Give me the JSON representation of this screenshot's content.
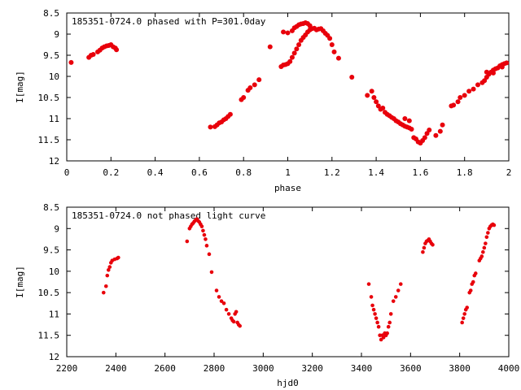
{
  "chart_data": [
    {
      "type": "scatter",
      "title": "185351-0724.0 phased with P=301.0day",
      "xlabel": "phase",
      "ylabel": "I[mag]",
      "xlim": [
        0,
        2
      ],
      "ylim": [
        8.5,
        12
      ],
      "y_inverted": true,
      "xticks": [
        "0",
        "0.2",
        "0.4",
        "0.6",
        "0.8",
        "1",
        "1.2",
        "1.4",
        "1.6",
        "1.8",
        "2"
      ],
      "yticks": [
        "8.5",
        "9",
        "9.5",
        "10",
        "10.5",
        "11",
        "11.5",
        "12"
      ],
      "marker_color": "#e8000b",
      "points": [
        [
          0.02,
          9.67
        ],
        [
          0.1,
          9.55
        ],
        [
          0.11,
          9.5
        ],
        [
          0.12,
          9.48
        ],
        [
          0.14,
          9.42
        ],
        [
          0.15,
          9.38
        ],
        [
          0.16,
          9.33
        ],
        [
          0.17,
          9.3
        ],
        [
          0.18,
          9.28
        ],
        [
          0.19,
          9.27
        ],
        [
          0.2,
          9.25
        ],
        [
          0.21,
          9.3
        ],
        [
          0.22,
          9.33
        ],
        [
          0.225,
          9.37
        ],
        [
          0.65,
          11.2
        ],
        [
          0.67,
          11.19
        ],
        [
          0.68,
          11.15
        ],
        [
          0.69,
          11.1
        ],
        [
          0.7,
          11.08
        ],
        [
          0.71,
          11.03
        ],
        [
          0.72,
          11.0
        ],
        [
          0.73,
          10.95
        ],
        [
          0.74,
          10.9
        ],
        [
          0.79,
          10.55
        ],
        [
          0.8,
          10.5
        ],
        [
          0.82,
          10.33
        ],
        [
          0.83,
          10.27
        ],
        [
          0.85,
          10.2
        ],
        [
          0.87,
          10.08
        ],
        [
          0.92,
          9.3
        ],
        [
          0.97,
          9.77
        ],
        [
          0.98,
          9.73
        ],
        [
          0.99,
          9.72
        ],
        [
          1.0,
          9.7
        ],
        [
          1.01,
          9.65
        ],
        [
          1.02,
          9.55
        ],
        [
          1.03,
          9.45
        ],
        [
          1.04,
          9.35
        ],
        [
          1.05,
          9.25
        ],
        [
          1.06,
          9.15
        ],
        [
          1.07,
          9.08
        ],
        [
          1.08,
          9.02
        ],
        [
          1.09,
          8.95
        ],
        [
          1.1,
          8.9
        ],
        [
          1.11,
          8.87
        ],
        [
          0.98,
          8.95
        ],
        [
          1.0,
          8.97
        ],
        [
          1.02,
          8.92
        ],
        [
          1.03,
          8.85
        ],
        [
          1.04,
          8.82
        ],
        [
          1.05,
          8.78
        ],
        [
          1.06,
          8.76
        ],
        [
          1.07,
          8.75
        ],
        [
          1.08,
          8.73
        ],
        [
          1.09,
          8.75
        ],
        [
          1.1,
          8.8
        ],
        [
          1.12,
          8.86
        ],
        [
          1.13,
          8.9
        ],
        [
          1.14,
          8.88
        ],
        [
          1.15,
          8.87
        ],
        [
          1.16,
          8.92
        ],
        [
          1.17,
          8.98
        ],
        [
          1.18,
          9.03
        ],
        [
          1.19,
          9.1
        ],
        [
          1.2,
          9.25
        ],
        [
          1.21,
          9.42
        ],
        [
          1.23,
          9.57
        ],
        [
          1.29,
          10.02
        ],
        [
          1.36,
          10.45
        ],
        [
          1.38,
          10.35
        ],
        [
          1.39,
          10.5
        ],
        [
          1.4,
          10.6
        ],
        [
          1.41,
          10.7
        ],
        [
          1.42,
          10.78
        ],
        [
          1.43,
          10.75
        ],
        [
          1.44,
          10.85
        ],
        [
          1.45,
          10.9
        ],
        [
          1.46,
          10.93
        ],
        [
          1.47,
          10.97
        ],
        [
          1.48,
          11.0
        ],
        [
          1.49,
          11.05
        ],
        [
          1.5,
          11.08
        ],
        [
          1.51,
          11.12
        ],
        [
          1.52,
          11.15
        ],
        [
          1.53,
          11.18
        ],
        [
          1.54,
          11.2
        ],
        [
          1.55,
          11.22
        ],
        [
          1.56,
          11.25
        ],
        [
          1.57,
          11.45
        ],
        [
          1.58,
          11.48
        ],
        [
          1.59,
          11.55
        ],
        [
          1.6,
          11.58
        ],
        [
          1.61,
          11.52
        ],
        [
          1.62,
          11.45
        ],
        [
          1.63,
          11.35
        ],
        [
          1.64,
          11.27
        ],
        [
          1.67,
          11.4
        ],
        [
          1.69,
          11.3
        ],
        [
          1.7,
          11.15
        ],
        [
          1.53,
          11.0
        ],
        [
          1.55,
          11.05
        ],
        [
          1.74,
          10.7
        ],
        [
          1.75,
          10.68
        ],
        [
          1.77,
          10.6
        ],
        [
          1.78,
          10.5
        ],
        [
          1.8,
          10.45
        ],
        [
          1.82,
          10.35
        ],
        [
          1.84,
          10.3
        ],
        [
          1.86,
          10.2
        ],
        [
          1.88,
          10.15
        ],
        [
          1.89,
          10.1
        ],
        [
          1.9,
          10.02
        ],
        [
          1.91,
          9.95
        ],
        [
          1.92,
          9.9
        ],
        [
          1.93,
          9.85
        ],
        [
          1.94,
          9.82
        ],
        [
          1.95,
          9.8
        ],
        [
          1.96,
          9.75
        ],
        [
          1.97,
          9.72
        ],
        [
          1.98,
          9.7
        ],
        [
          1.99,
          9.68
        ],
        [
          1.9,
          9.9
        ],
        [
          1.93,
          9.92
        ],
        [
          1.97,
          9.78
        ]
      ]
    },
    {
      "type": "scatter",
      "title": "185351-0724.0 not phased light curve",
      "xlabel": "hjd0",
      "ylabel": "I[mag]",
      "xlim": [
        2200,
        4000
      ],
      "ylim": [
        8.5,
        12
      ],
      "y_inverted": true,
      "xticks": [
        "2200",
        "2400",
        "2600",
        "2800",
        "3000",
        "3200",
        "3400",
        "3600",
        "3800",
        "4000"
      ],
      "yticks": [
        "8.5",
        "9",
        "9.5",
        "10",
        "10.5",
        "11",
        "11.5",
        "12"
      ],
      "marker_color": "#e8000b",
      "points": [
        [
          2350,
          10.5
        ],
        [
          2360,
          10.35
        ],
        [
          2365,
          10.1
        ],
        [
          2370,
          9.97
        ],
        [
          2375,
          9.9
        ],
        [
          2380,
          9.8
        ],
        [
          2385,
          9.75
        ],
        [
          2395,
          9.72
        ],
        [
          2405,
          9.7
        ],
        [
          2410,
          9.68
        ],
        [
          2690,
          9.3
        ],
        [
          2700,
          9.0
        ],
        [
          2705,
          8.95
        ],
        [
          2710,
          8.9
        ],
        [
          2715,
          8.87
        ],
        [
          2720,
          8.83
        ],
        [
          2725,
          8.8
        ],
        [
          2730,
          8.78
        ],
        [
          2735,
          8.82
        ],
        [
          2740,
          8.85
        ],
        [
          2745,
          8.9
        ],
        [
          2750,
          8.95
        ],
        [
          2755,
          9.05
        ],
        [
          2760,
          9.15
        ],
        [
          2765,
          9.25
        ],
        [
          2770,
          9.4
        ],
        [
          2780,
          9.6
        ],
        [
          2790,
          10.02
        ],
        [
          2810,
          10.45
        ],
        [
          2820,
          10.6
        ],
        [
          2830,
          10.7
        ],
        [
          2840,
          10.75
        ],
        [
          2850,
          10.9
        ],
        [
          2860,
          11.0
        ],
        [
          2870,
          11.1
        ],
        [
          2875,
          11.15
        ],
        [
          2880,
          11.18
        ],
        [
          2885,
          11.0
        ],
        [
          2890,
          10.95
        ],
        [
          2895,
          11.2
        ],
        [
          2900,
          11.25
        ],
        [
          2905,
          11.28
        ],
        [
          3430,
          10.3
        ],
        [
          3440,
          10.6
        ],
        [
          3445,
          10.8
        ],
        [
          3450,
          10.9
        ],
        [
          3455,
          11.0
        ],
        [
          3460,
          11.1
        ],
        [
          3465,
          11.2
        ],
        [
          3470,
          11.3
        ],
        [
          3475,
          11.5
        ],
        [
          3480,
          11.6
        ],
        [
          3485,
          11.5
        ],
        [
          3490,
          11.55
        ],
        [
          3495,
          11.45
        ],
        [
          3500,
          11.5
        ],
        [
          3505,
          11.45
        ],
        [
          3510,
          11.3
        ],
        [
          3515,
          11.2
        ],
        [
          3520,
          11.0
        ],
        [
          3530,
          10.7
        ],
        [
          3540,
          10.6
        ],
        [
          3550,
          10.45
        ],
        [
          3560,
          10.3
        ],
        [
          3650,
          9.55
        ],
        [
          3655,
          9.45
        ],
        [
          3660,
          9.35
        ],
        [
          3665,
          9.3
        ],
        [
          3670,
          9.28
        ],
        [
          3675,
          9.25
        ],
        [
          3680,
          9.3
        ],
        [
          3685,
          9.35
        ],
        [
          3690,
          9.38
        ],
        [
          3810,
          11.2
        ],
        [
          3815,
          11.1
        ],
        [
          3820,
          11.0
        ],
        [
          3825,
          10.9
        ],
        [
          3830,
          10.85
        ],
        [
          3840,
          10.5
        ],
        [
          3845,
          10.45
        ],
        [
          3850,
          10.3
        ],
        [
          3855,
          10.25
        ],
        [
          3860,
          10.1
        ],
        [
          3865,
          10.05
        ],
        [
          3880,
          9.75
        ],
        [
          3885,
          9.7
        ],
        [
          3890,
          9.65
        ],
        [
          3895,
          9.55
        ],
        [
          3900,
          9.45
        ],
        [
          3905,
          9.35
        ],
        [
          3910,
          9.2
        ],
        [
          3915,
          9.1
        ],
        [
          3920,
          9.0
        ],
        [
          3925,
          8.95
        ],
        [
          3930,
          8.92
        ],
        [
          3935,
          8.9
        ],
        [
          3940,
          8.92
        ]
      ]
    }
  ]
}
